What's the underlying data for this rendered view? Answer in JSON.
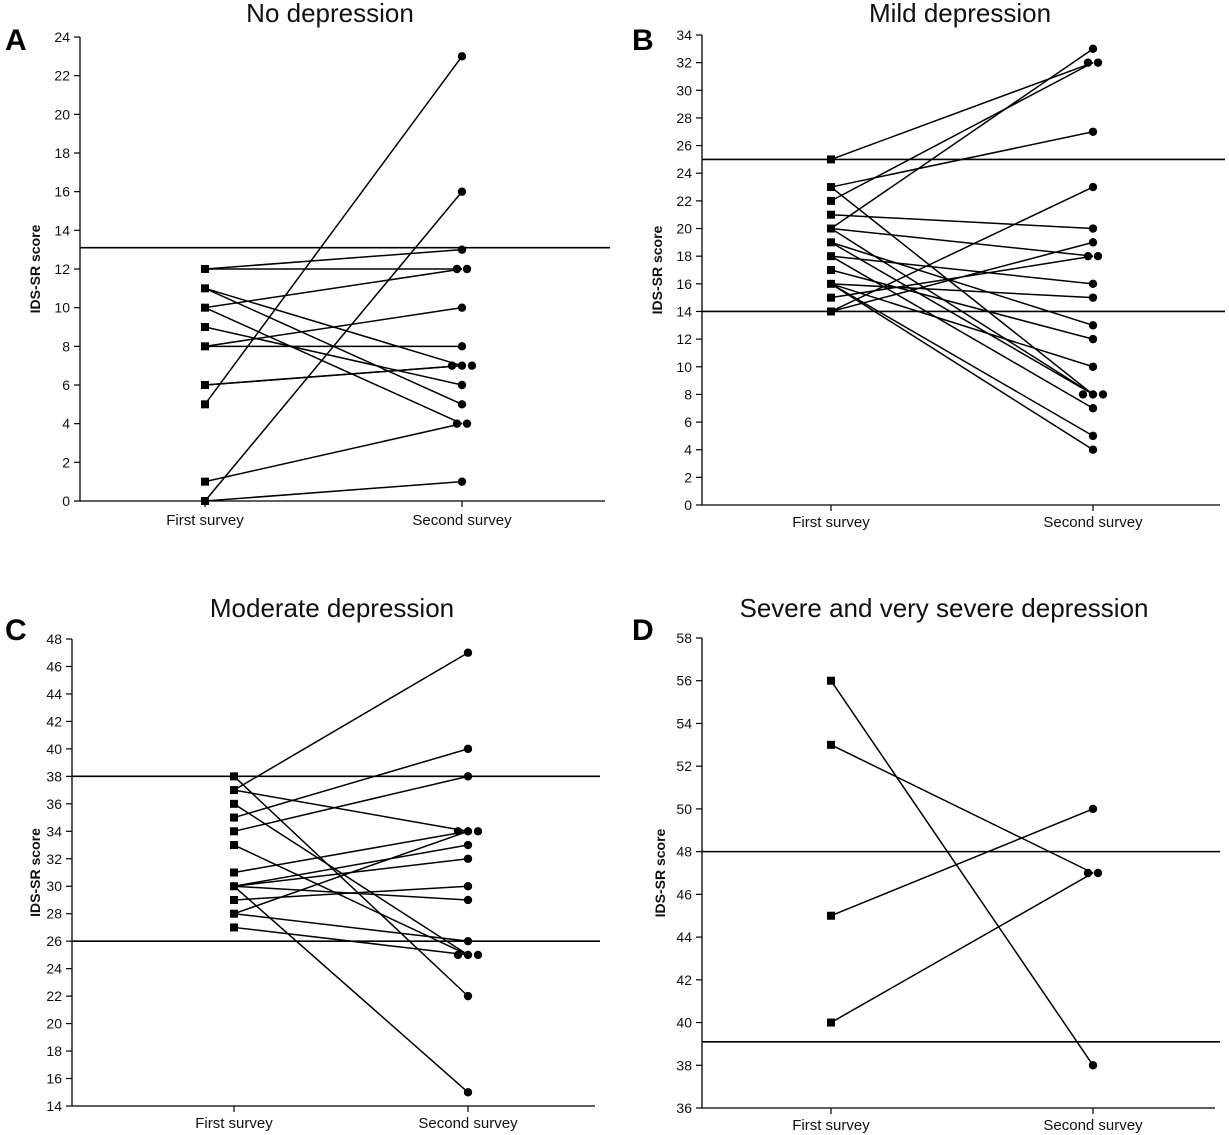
{
  "chart_data": [
    {
      "panel": "A",
      "type": "line",
      "title": "No depression",
      "ylabel": "IDS-SR score",
      "xlabel": "",
      "categories": [
        "First survey",
        "Second survey"
      ],
      "ylim": [
        0,
        24
      ],
      "ytick_step": 2,
      "threshold": 13.1,
      "pairs": [
        [
          12,
          13
        ],
        [
          12,
          12
        ],
        [
          11,
          7
        ],
        [
          11,
          5
        ],
        [
          10,
          12
        ],
        [
          10,
          4
        ],
        [
          9,
          6
        ],
        [
          8,
          10
        ],
        [
          8,
          8
        ],
        [
          6,
          7
        ],
        [
          6,
          7
        ],
        [
          5,
          23
        ],
        [
          1,
          4
        ],
        [
          0,
          1
        ],
        [
          0,
          16
        ]
      ]
    },
    {
      "panel": "B",
      "type": "line",
      "title": "Mild depression",
      "ylabel": "IDS-SR score",
      "xlabel": "",
      "categories": [
        "First survey",
        "Second survey"
      ],
      "ylim": [
        0,
        34
      ],
      "ytick_step": 2,
      "threshold_upper": 25,
      "threshold_lower": 14,
      "pairs": [
        [
          25,
          32
        ],
        [
          23,
          27
        ],
        [
          23,
          8
        ],
        [
          22,
          32
        ],
        [
          21,
          20
        ],
        [
          20,
          33
        ],
        [
          20,
          18
        ],
        [
          20,
          8
        ],
        [
          19,
          13
        ],
        [
          19,
          8
        ],
        [
          18,
          16
        ],
        [
          18,
          7
        ],
        [
          17,
          12
        ],
        [
          16,
          10
        ],
        [
          16,
          15
        ],
        [
          16,
          5
        ],
        [
          15,
          18
        ],
        [
          14,
          19
        ],
        [
          14,
          23
        ],
        [
          16,
          4
        ]
      ]
    },
    {
      "panel": "C",
      "type": "line",
      "title": "Moderate depression",
      "ylabel": "IDS-SR score",
      "xlabel": "",
      "categories": [
        "First survey",
        "Second survey"
      ],
      "ylim": [
        14,
        48
      ],
      "ytick_step": 2,
      "threshold_upper": 38,
      "threshold_lower": 26,
      "pairs": [
        [
          38,
          22
        ],
        [
          37,
          47
        ],
        [
          37,
          34
        ],
        [
          36,
          25
        ],
        [
          35,
          40
        ],
        [
          34,
          38
        ],
        [
          33,
          25
        ],
        [
          31,
          34
        ],
        [
          30,
          32
        ],
        [
          30,
          33
        ],
        [
          30,
          15
        ],
        [
          29,
          30
        ],
        [
          28,
          34
        ],
        [
          28,
          26
        ],
        [
          27,
          25
        ],
        [
          30,
          29
        ]
      ]
    },
    {
      "panel": "D",
      "type": "line",
      "title": "Severe and very severe depression",
      "ylabel": "IDS-SR score",
      "xlabel": "",
      "categories": [
        "First survey",
        "Second survey"
      ],
      "ylim": [
        36,
        58
      ],
      "ytick_step": 2,
      "threshold_upper": 48,
      "threshold_lower": 39.1,
      "pairs": [
        [
          56,
          38
        ],
        [
          53,
          47
        ],
        [
          45,
          50
        ],
        [
          40,
          47
        ]
      ]
    }
  ]
}
